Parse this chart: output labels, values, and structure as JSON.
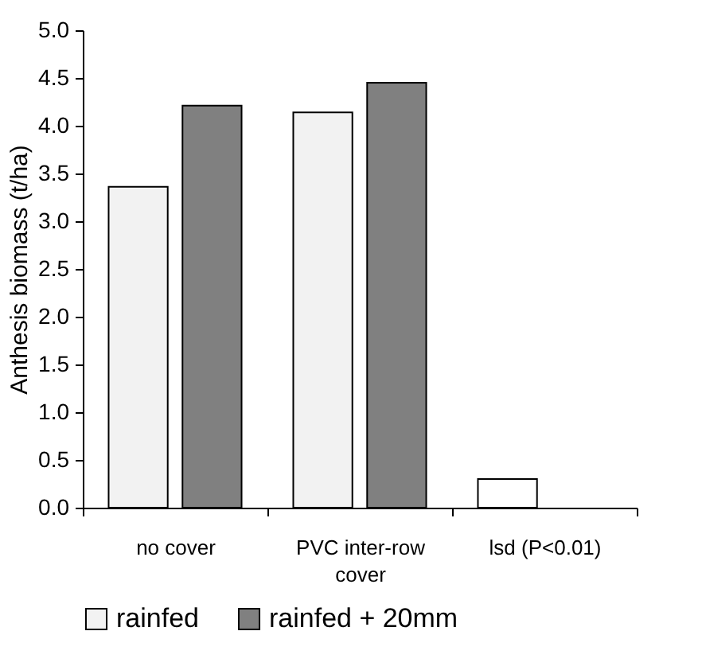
{
  "chart_data": {
    "type": "bar",
    "ylabel": "Anthesis biomass (t/ha)",
    "categories": [
      "no cover",
      "PVC inter-row cover",
      "lsd (P<0.01)"
    ],
    "series": [
      {
        "name": "rainfed",
        "color": "#f2f2f2",
        "colors": [
          "#f2f2f2",
          "#f2f2f2",
          "#ffffff"
        ],
        "values": [
          3.36,
          4.14,
          0.3
        ]
      },
      {
        "name": "rainfed + 20mm",
        "color": "#808080",
        "values": [
          4.21,
          4.45,
          null
        ]
      }
    ],
    "ylim": [
      0,
      5
    ],
    "yticks": [
      {
        "value": 0,
        "label": "0.0"
      },
      0.5,
      {
        "value": 1,
        "label": "1.0"
      },
      1.5,
      {
        "value": 2,
        "label": "2.0"
      },
      2.5,
      {
        "value": 3,
        "label": "3.0"
      },
      3.5,
      {
        "value": 4,
        "label": "4.0"
      },
      4.5,
      {
        "value": 5,
        "label": "5.0"
      }
    ],
    "grid": false,
    "legend": "bottom"
  }
}
